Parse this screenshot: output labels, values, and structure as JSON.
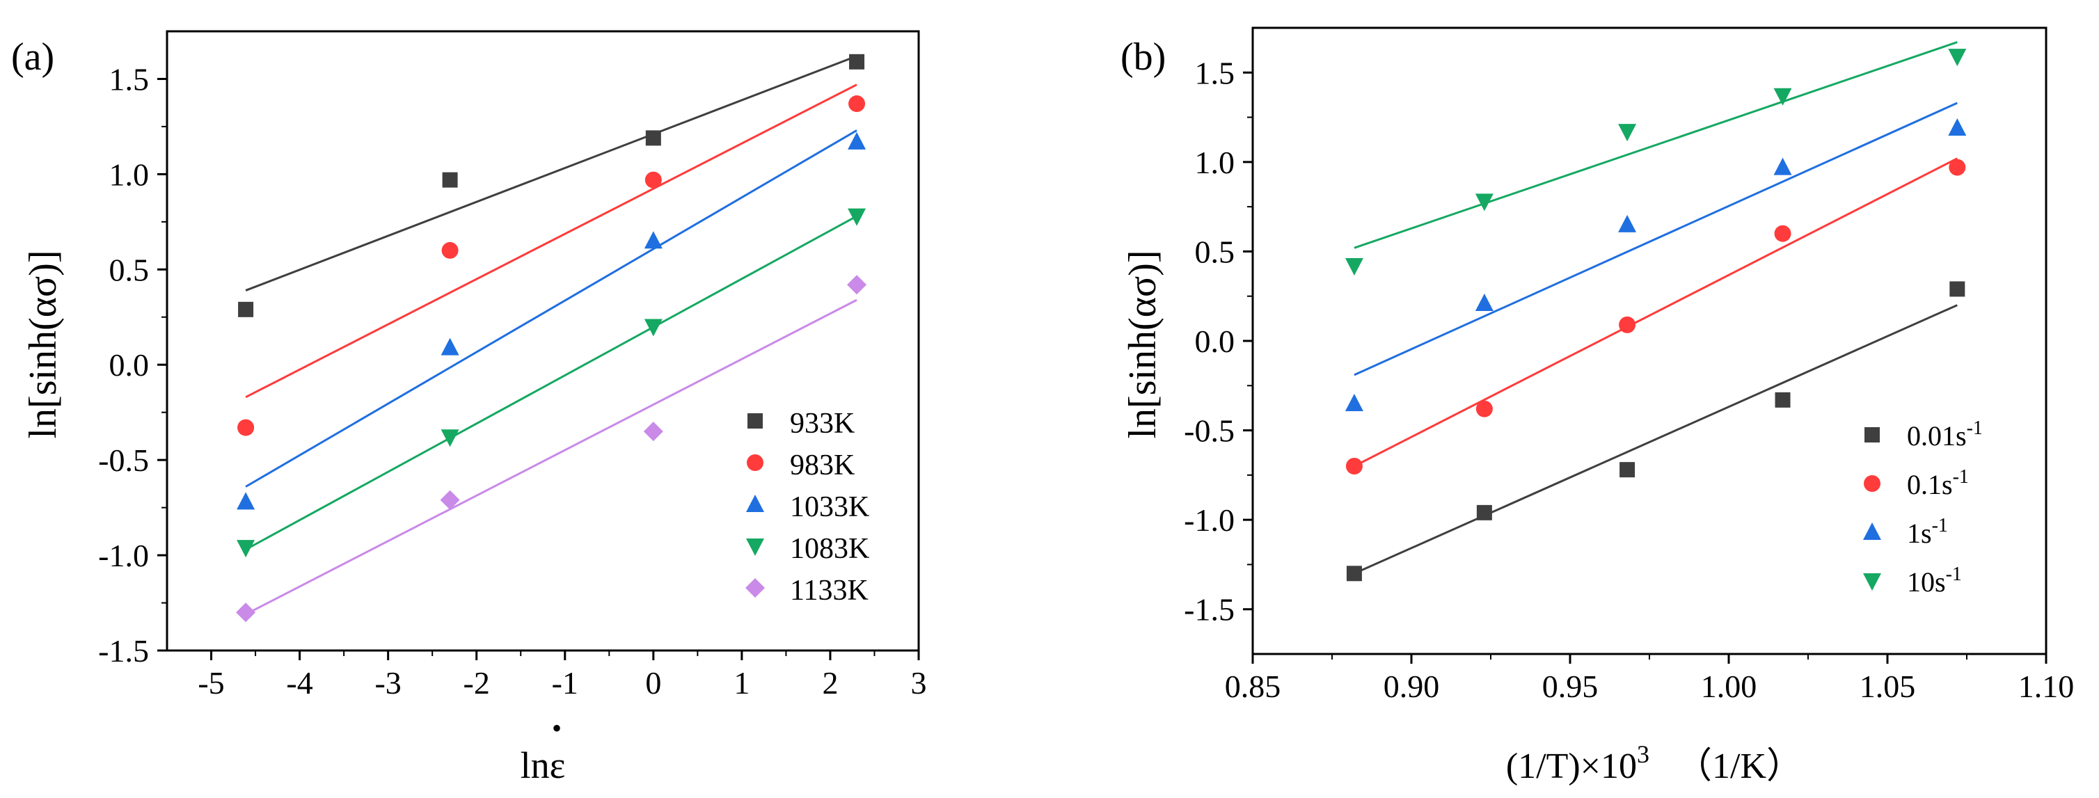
{
  "colors": {
    "axis": "#000000",
    "black_series": "#3f3f3f",
    "red_series": "#ff3b3b",
    "blue_series": "#1f6fe0",
    "green_series": "#15a862",
    "purple_series": "#c98ae8"
  },
  "chart_data": [
    {
      "panel_label": "(a)",
      "type": "scatter",
      "xlabel": "lnε",
      "xlabel_dot": "•",
      "ylabel": "ln[sinh(ασ)]",
      "xlim": [
        -5.5,
        3
      ],
      "ylim": [
        -1.5,
        1.75
      ],
      "xticks": [
        -5,
        -4,
        -3,
        -2,
        -1,
        0,
        1,
        2,
        3
      ],
      "yticks": [
        -1.5,
        -1.0,
        -0.5,
        0.0,
        0.5,
        1.0,
        1.5
      ],
      "xtick_labels": [
        "-5",
        "-4",
        "-3",
        "-2",
        "-1",
        "0",
        "1",
        "2",
        "3"
      ],
      "ytick_labels": [
        "-1.5",
        "-1.0",
        "-0.5",
        "0.0",
        "0.5",
        "1.0",
        "1.5"
      ],
      "legend_position": "bottom-right",
      "series": [
        {
          "name": "933K",
          "marker": "square",
          "color": "#3f3f3f",
          "x": [
            -4.61,
            -2.3,
            0,
            2.3
          ],
          "y": [
            0.29,
            0.97,
            1.19,
            1.59
          ],
          "fit": {
            "x": [
              -4.61,
              2.3
            ],
            "y": [
              0.39,
              1.62
            ]
          }
        },
        {
          "name": "983K",
          "marker": "circle",
          "color": "#ff3b3b",
          "x": [
            -4.61,
            -2.3,
            0,
            2.3
          ],
          "y": [
            -0.33,
            0.6,
            0.97,
            1.37
          ],
          "fit": {
            "x": [
              -4.61,
              2.3
            ],
            "y": [
              -0.17,
              1.47
            ]
          }
        },
        {
          "name": "1033K",
          "marker": "triangle-up",
          "color": "#1f6fe0",
          "x": [
            -4.61,
            -2.3,
            0,
            2.3
          ],
          "y": [
            -0.72,
            0.09,
            0.65,
            1.17
          ],
          "fit": {
            "x": [
              -4.61,
              2.3
            ],
            "y": [
              -0.64,
              1.23
            ]
          }
        },
        {
          "name": "1083K",
          "marker": "triangle-down",
          "color": "#15a862",
          "x": [
            -4.61,
            -2.3,
            0,
            2.3
          ],
          "y": [
            -0.96,
            -0.38,
            0.2,
            0.78
          ],
          "fit": {
            "x": [
              -4.61,
              2.3
            ],
            "y": [
              -0.97,
              0.78
            ]
          }
        },
        {
          "name": "1133K",
          "marker": "diamond",
          "color": "#c98ae8",
          "x": [
            -4.61,
            -2.3,
            0,
            2.3
          ],
          "y": [
            -1.3,
            -0.71,
            -0.35,
            0.42
          ],
          "fit": {
            "x": [
              -4.61,
              2.3
            ],
            "y": [
              -1.31,
              0.34
            ]
          }
        }
      ]
    },
    {
      "panel_label": "(b)",
      "type": "scatter",
      "xlabel": "(1/T)×10",
      "xlabel_sup": "3",
      "xlabel_unit": "（1/K）",
      "ylabel": "ln[sinh(ασ)]",
      "xlim": [
        0.85,
        1.1
      ],
      "ylim": [
        -1.75,
        1.75
      ],
      "xticks": [
        0.85,
        0.9,
        0.95,
        1.0,
        1.05,
        1.1
      ],
      "yticks": [
        -1.5,
        -1.0,
        -0.5,
        0.0,
        0.5,
        1.0,
        1.5
      ],
      "xtick_labels": [
        "0.85",
        "0.90",
        "0.95",
        "1.00",
        "1.05",
        "1.10"
      ],
      "ytick_labels": [
        "-1.5",
        "-1.0",
        "-0.5",
        "0.0",
        "0.5",
        "1.0",
        "1.5"
      ],
      "legend_position": "bottom-right",
      "series": [
        {
          "name": "0.01s",
          "name_sup": "-1",
          "marker": "square",
          "color": "#3f3f3f",
          "x": [
            0.882,
            0.923,
            0.968,
            1.017,
            1.072
          ],
          "y": [
            -1.3,
            -0.96,
            -0.72,
            -0.33,
            0.29
          ],
          "fit": {
            "x": [
              0.882,
              1.072
            ],
            "y": [
              -1.3,
              0.2
            ]
          }
        },
        {
          "name": "0.1s",
          "name_sup": "-1",
          "marker": "circle",
          "color": "#ff3b3b",
          "x": [
            0.882,
            0.923,
            0.968,
            1.017,
            1.072
          ],
          "y": [
            -0.7,
            -0.38,
            0.09,
            0.6,
            0.97
          ],
          "fit": {
            "x": [
              0.882,
              1.072
            ],
            "y": [
              -0.7,
              1.02
            ]
          }
        },
        {
          "name": "1s",
          "name_sup": "-1",
          "marker": "triangle-up",
          "color": "#1f6fe0",
          "x": [
            0.882,
            0.923,
            0.968,
            1.017,
            1.072
          ],
          "y": [
            -0.35,
            0.21,
            0.65,
            0.97,
            1.19
          ],
          "fit": {
            "x": [
              0.882,
              1.072
            ],
            "y": [
              -0.19,
              1.33
            ]
          }
        },
        {
          "name": "10s",
          "name_sup": "-1",
          "marker": "triangle-down",
          "color": "#15a862",
          "x": [
            0.882,
            0.923,
            0.968,
            1.017,
            1.072
          ],
          "y": [
            0.42,
            0.78,
            1.17,
            1.37,
            1.59
          ],
          "fit": {
            "x": [
              0.882,
              1.072
            ],
            "y": [
              0.52,
              1.67
            ]
          }
        }
      ]
    }
  ]
}
